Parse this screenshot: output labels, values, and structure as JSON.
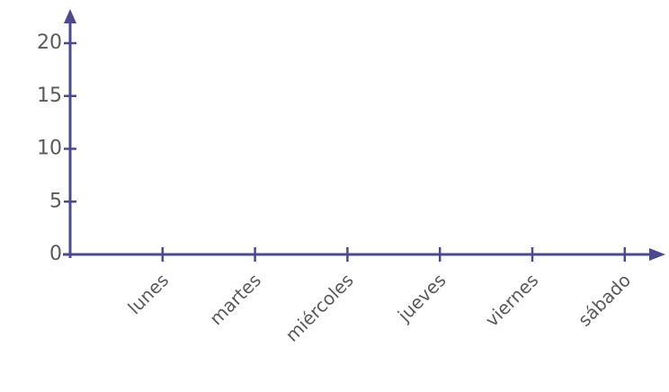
{
  "chart_data": {
    "type": "bar",
    "categories": [
      "lunes",
      "martes",
      "miércoles",
      "jueves",
      "viernes",
      "sábado"
    ],
    "ylim": [
      0,
      20
    ],
    "yticks": [
      0,
      5,
      10,
      15,
      20
    ],
    "grid": false,
    "axis_color": "#4b4a8c"
  }
}
